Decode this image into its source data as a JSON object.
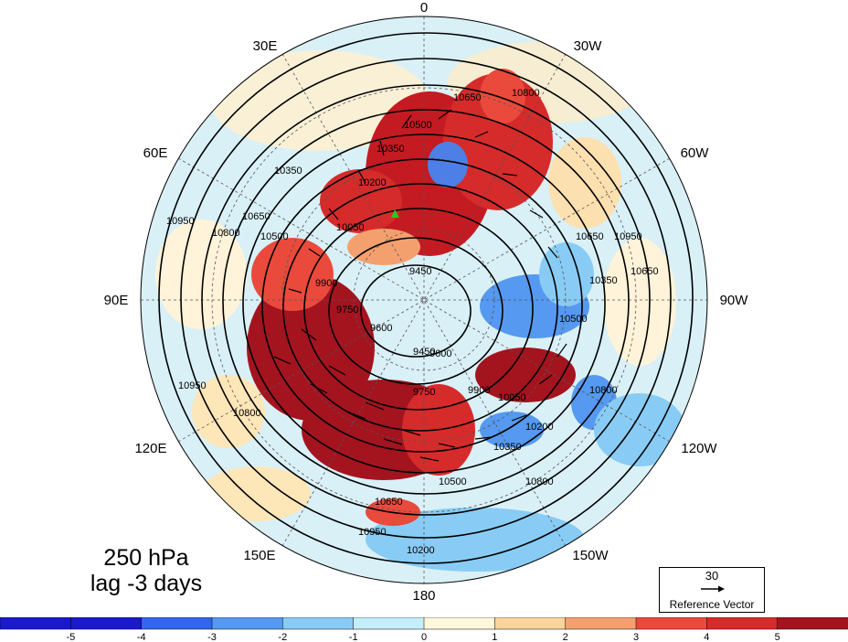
{
  "map": {
    "projection": "north polar stereographic",
    "longitude_labels": [
      {
        "text": "0",
        "lon": 0
      },
      {
        "text": "30W",
        "lon": -30
      },
      {
        "text": "60W",
        "lon": -60
      },
      {
        "text": "90W",
        "lon": -90
      },
      {
        "text": "120W",
        "lon": -120
      },
      {
        "text": "150W",
        "lon": -150
      },
      {
        "text": "180",
        "lon": 180
      },
      {
        "text": "150E",
        "lon": 150
      },
      {
        "text": "120E",
        "lon": 120
      },
      {
        "text": "90E",
        "lon": 90
      },
      {
        "text": "60E",
        "lon": 60
      },
      {
        "text": "30E",
        "lon": 30
      }
    ],
    "contour_labels": [
      "10650",
      "10800",
      "10500",
      "10350",
      "10200",
      "10050",
      "9900",
      "9750",
      "9600",
      "9450",
      "10950",
      "10800",
      "10650",
      "10500",
      "10350",
      "10950",
      "10800",
      "10650",
      "10500",
      "10350",
      "10200",
      "10050",
      "9900",
      "9750",
      "9600",
      "9450",
      "10950",
      "10800",
      "10650",
      "10500",
      "10350",
      "10200",
      "10950",
      "10800",
      "10650"
    ],
    "marker": {
      "color": "#22cc22",
      "shape": "triangle"
    }
  },
  "title": {
    "level": "250 hPa",
    "lag": "lag -3 days"
  },
  "reference_vector": {
    "value": "30",
    "label": "Reference Vector"
  },
  "colorbar": {
    "ticks": [
      "-5",
      "-4",
      "-3",
      "-2",
      "-1",
      "0",
      "1",
      "2",
      "3",
      "4",
      "5"
    ],
    "colors": [
      "#1a1acc",
      "#3366ee",
      "#5599f0",
      "#88ccf5",
      "#c4eefa",
      "#fff8dc",
      "#fbd49a",
      "#f4a06e",
      "#ea4a3c",
      "#d62b2b",
      "#a3141f"
    ]
  }
}
